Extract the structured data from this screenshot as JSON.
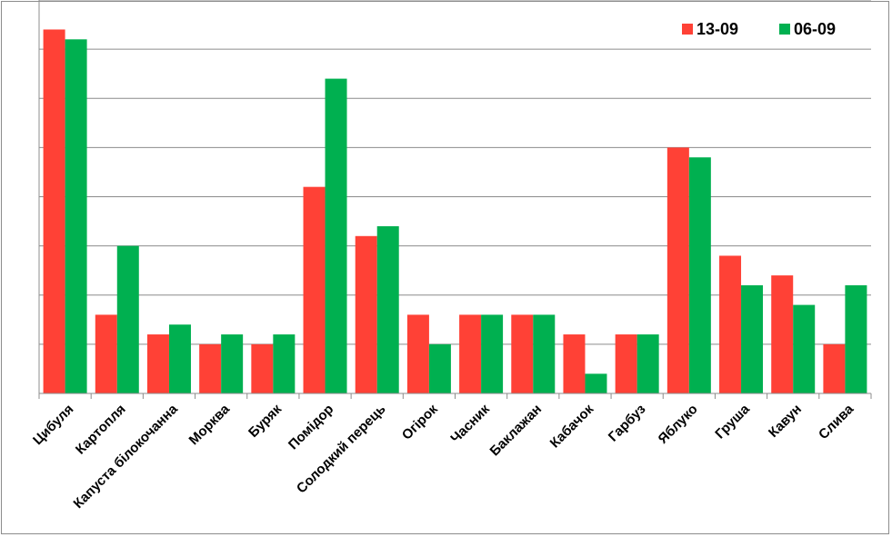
{
  "chart_data": {
    "type": "bar",
    "title": "",
    "xlabel": "",
    "ylabel": "",
    "categories": [
      "Цибуля",
      "Картопля",
      "Капуста білокочанна",
      "Морква",
      "Буряк",
      "Помідор",
      "Солодкий перець",
      "Огірок",
      "Часник",
      "Баклажан",
      "Кабачок",
      "Гарбуз",
      "Яблуко",
      "Груша",
      "Кавун",
      "Слива"
    ],
    "series": [
      {
        "name": "13-09",
        "color": "#ff4136",
        "values": [
          37,
          8,
          6,
          5,
          5,
          21,
          16,
          8,
          8,
          8,
          6,
          6,
          25,
          14,
          12,
          5
        ]
      },
      {
        "name": "06-09",
        "color": "#00b050",
        "values": [
          36,
          15,
          7,
          6,
          6,
          32,
          17,
          5,
          8,
          8,
          2,
          6,
          24,
          11,
          9,
          11
        ]
      }
    ],
    "ylim": [
      0,
      40
    ],
    "y_gridline_step": 5,
    "grid": true,
    "y_tick_labels_shown": false,
    "legend_position": "top-right"
  }
}
